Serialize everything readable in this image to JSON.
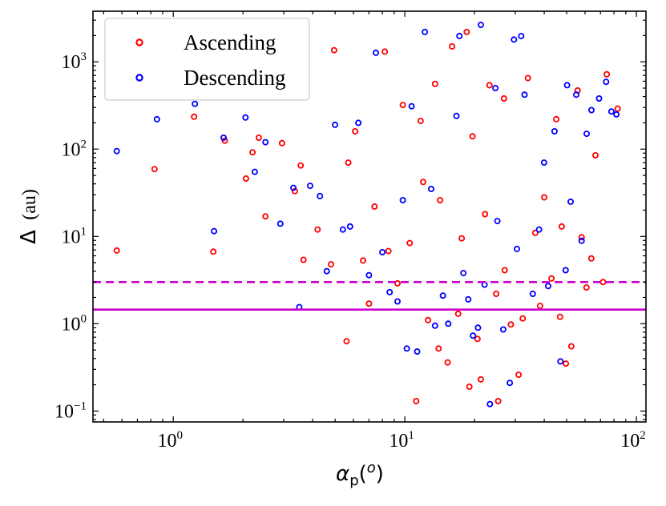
{
  "chart_data": {
    "type": "scatter",
    "xscale": "log",
    "yscale": "log",
    "xlim": [
      0.45,
      110
    ],
    "ylim": [
      0.075,
      3800
    ],
    "xlabel": "αp(o)",
    "xlabel_main": "α",
    "xlabel_sub": "p",
    "xlabel_paren_open": "(",
    "xlabel_sup": "o",
    "xlabel_paren_close": ")",
    "ylabel": "Δ (au)",
    "ylabel_symbol": "Δ",
    "ylabel_unit": "(au)",
    "grid": false,
    "legend_position": "top-left",
    "x_ticks": [
      {
        "value": 1,
        "base": "10",
        "exp": "0"
      },
      {
        "value": 10,
        "base": "10",
        "exp": "1"
      },
      {
        "value": 100,
        "base": "10",
        "exp": "2"
      }
    ],
    "y_ticks": [
      {
        "value": 0.1,
        "base": "10",
        "exp": "−1"
      },
      {
        "value": 1,
        "base": "10",
        "exp": "0"
      },
      {
        "value": 10,
        "base": "10",
        "exp": "1"
      },
      {
        "value": 100,
        "base": "10",
        "exp": "2"
      },
      {
        "value": 1000,
        "base": "10",
        "exp": "3"
      }
    ],
    "reference_lines": [
      {
        "y": 3.0,
        "style": "dashed",
        "color": "#cc00cc"
      },
      {
        "y": 1.45,
        "style": "solid",
        "color": "#cc00cc"
      }
    ],
    "series": [
      {
        "name": "Ascending",
        "color": "#ff0000",
        "x": [
          0.57,
          0.83,
          1.23,
          1.49,
          1.67,
          2.06,
          2.2,
          2.34,
          2.5,
          2.95,
          3.35,
          3.55,
          3.65,
          4.2,
          4.8,
          4.95,
          5.6,
          5.7,
          6.1,
          6.6,
          7.0,
          7.4,
          8.2,
          8.5,
          9.3,
          9.8,
          10.5,
          11.2,
          11.7,
          12.0,
          12.6,
          13.5,
          14.0,
          14.2,
          15.3,
          16.0,
          17.0,
          17.6,
          18.5,
          19.0,
          19.6,
          20.6,
          21.3,
          22.2,
          23.2,
          24.8,
          25.3,
          26.8,
          27.0,
          28.7,
          31.0,
          32.3,
          34.0,
          36.6,
          38.4,
          40.0,
          43.0,
          45.1,
          46.8,
          47.6,
          49.6,
          52.4,
          55.8,
          58.0,
          60.9,
          63.9,
          66.6,
          71.8,
          74.5,
          83.0
        ],
        "y": [
          6.9,
          59,
          235,
          6.7,
          125,
          46,
          92,
          135,
          17,
          117,
          33,
          65,
          5.4,
          12,
          4.8,
          1360,
          0.63,
          70,
          160,
          5.3,
          1.7,
          22,
          1310,
          6.8,
          2.9,
          320,
          8.4,
          0.13,
          210,
          42,
          1.1,
          560,
          0.52,
          26,
          0.36,
          1500,
          1.3,
          9.5,
          2200,
          0.19,
          140,
          0.67,
          0.23,
          18,
          540,
          2.2,
          0.13,
          380,
          4.1,
          0.98,
          0.26,
          1.15,
          650,
          11,
          1.6,
          28,
          3.3,
          220,
          1.2,
          13,
          0.35,
          0.55,
          470,
          9.8,
          2.6,
          5.6,
          85,
          3.0,
          720,
          290
        ]
      },
      {
        "name": "Descending",
        "color": "#0000ff",
        "x": [
          0.57,
          0.85,
          1.24,
          1.5,
          1.65,
          2.05,
          2.25,
          2.5,
          2.9,
          3.3,
          3.5,
          3.9,
          4.3,
          4.6,
          5.0,
          5.4,
          5.8,
          6.3,
          7.0,
          7.5,
          8.0,
          8.6,
          9.3,
          9.8,
          10.2,
          10.7,
          11.3,
          12.2,
          13.0,
          13.5,
          14.6,
          15.4,
          16.7,
          17.2,
          17.9,
          18.8,
          19.7,
          20.7,
          21.3,
          22.1,
          23.3,
          24.6,
          25.1,
          26.6,
          28.4,
          29.6,
          30.5,
          31.8,
          32.9,
          35.7,
          38.0,
          39.9,
          41.6,
          44.3,
          47.0,
          49.5,
          50.2,
          52.0,
          55.0,
          58.0,
          61.0,
          64.0,
          69.0,
          74.0,
          78.0,
          82.0
        ],
        "y": [
          95,
          220,
          330,
          11.5,
          135,
          230,
          55,
          120,
          14,
          36,
          1.55,
          38,
          29,
          4.0,
          190,
          12,
          13,
          200,
          3.6,
          1270,
          6.6,
          2.3,
          1.8,
          26,
          0.52,
          310,
          0.48,
          2200,
          35,
          0.95,
          2.1,
          1.0,
          240,
          1980,
          3.8,
          1.9,
          0.73,
          0.9,
          2650,
          2.8,
          0.12,
          500,
          15,
          0.86,
          0.21,
          1800,
          7.2,
          1970,
          420,
          2.2,
          12,
          70,
          2.7,
          160,
          0.37,
          4.1,
          540,
          25,
          420,
          8.9,
          150,
          280,
          380,
          590,
          270,
          250
        ]
      }
    ]
  }
}
